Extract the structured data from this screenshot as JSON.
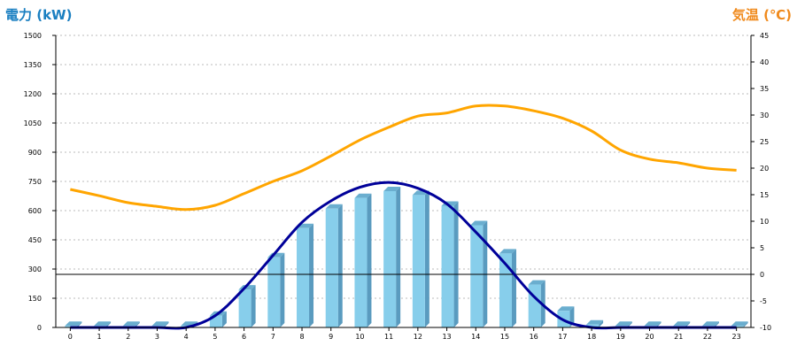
{
  "chart_data": {
    "type": "bar",
    "categories": [
      "0",
      "1",
      "2",
      "3",
      "4",
      "5",
      "6",
      "7",
      "8",
      "9",
      "10",
      "11",
      "12",
      "13",
      "14",
      "15",
      "16",
      "17",
      "18",
      "19",
      "20",
      "21",
      "22",
      "23"
    ],
    "y_left": {
      "label": "電力 (kW)",
      "ylim": [
        0,
        1500
      ],
      "ticks": [
        "0",
        "150",
        "300",
        "450",
        "600",
        "750",
        "900",
        "1050",
        "1200",
        "1350",
        "1500"
      ]
    },
    "y_right": {
      "label": "気温 (℃)",
      "ylim": [
        -10,
        45
      ],
      "ticks": [
        "-10",
        "-5",
        "0",
        "5",
        "10",
        "15",
        "20",
        "25",
        "30",
        "35",
        "40",
        "45"
      ]
    },
    "bars": {
      "values": [
        8,
        8,
        8,
        8,
        8,
        60,
        195,
        360,
        510,
        610,
        665,
        700,
        680,
        625,
        525,
        380,
        220,
        85,
        15,
        8,
        8,
        8,
        8,
        8
      ],
      "color": "#87ceeb",
      "side_color": "#5a9bbf",
      "top_color": "#6aaecf"
    },
    "series": [
      {
        "type": "line",
        "axis": "left",
        "color": "#000099",
        "values": [
          0,
          0,
          0,
          0,
          0,
          60,
          200,
          370,
          540,
          650,
          720,
          745,
          715,
          635,
          490,
          330,
          160,
          40,
          0,
          0,
          0,
          0,
          0,
          0
        ]
      },
      {
        "type": "line",
        "axis": "right",
        "color": "#ffa500",
        "values": [
          16,
          14.8,
          13.5,
          12.8,
          12.2,
          13,
          15.2,
          17.5,
          19.5,
          22.3,
          25.3,
          27.7,
          29.8,
          30.4,
          31.7,
          31.7,
          30.8,
          29.4,
          27,
          23.4,
          21.7,
          21,
          20,
          19.6
        ]
      }
    ],
    "reference_line": {
      "axis": "right",
      "value": 0,
      "color": "#000000"
    },
    "grid": true,
    "colors": {
      "left_label": "#1a7fc1",
      "right_label": "#f08a1c",
      "grid": "#bbbbbb"
    }
  }
}
